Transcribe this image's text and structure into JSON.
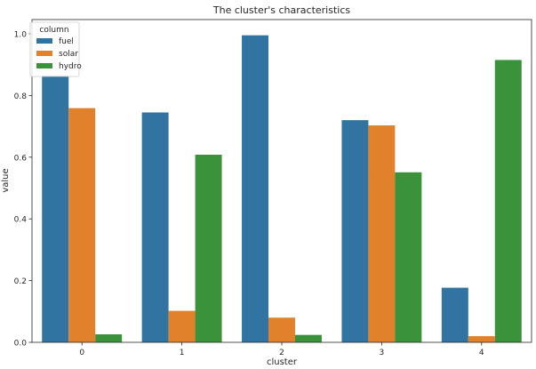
{
  "chart_data": {
    "type": "bar",
    "title": "The cluster's characteristics",
    "xlabel": "cluster",
    "ylabel": "value",
    "categories": [
      "0",
      "1",
      "2",
      "3",
      "4"
    ],
    "series": [
      {
        "name": "fuel",
        "color": "#3274a1",
        "values": [
          0.864,
          0.745,
          0.995,
          0.72,
          0.177
        ]
      },
      {
        "name": "solar",
        "color": "#e1812c",
        "values": [
          0.759,
          0.102,
          0.08,
          0.703,
          0.02
        ]
      },
      {
        "name": "hydro",
        "color": "#3a923a",
        "values": [
          0.026,
          0.608,
          0.024,
          0.551,
          0.915
        ]
      }
    ],
    "ylim": [
      0.0,
      1.046
    ],
    "yticks": [
      0.0,
      0.2,
      0.4,
      0.6,
      0.8,
      1.0
    ],
    "ytick_labels": [
      "0.0",
      "0.2",
      "0.4",
      "0.6",
      "0.8",
      "1.0"
    ],
    "grid": false,
    "legend": {
      "title": "column",
      "position": "top-left"
    }
  }
}
